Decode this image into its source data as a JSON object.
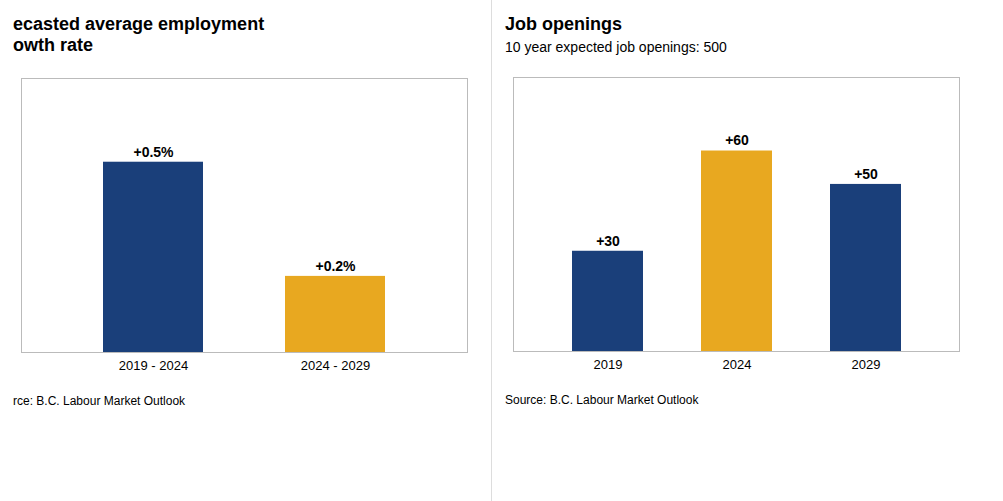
{
  "chart_data": [
    {
      "type": "bar",
      "title": "ecasted average employment\nowth rate",
      "categories": [
        "2019 - 2024",
        "2024 - 2029"
      ],
      "values": [
        0.5,
        0.2
      ],
      "value_labels": [
        "+0.5%",
        "+0.2%"
      ],
      "colors": [
        "#1a3f7a",
        "#e8a820"
      ],
      "ylim": [
        0,
        0.72
      ],
      "data_labels": true,
      "tick_labels": "x",
      "grid": false,
      "caption": "rce: B.C. Labour Market Outlook"
    },
    {
      "type": "bar",
      "title": "Job openings",
      "subtitle": "10 year expected job openings: 500",
      "categories": [
        "2019",
        "2024",
        "2029"
      ],
      "values": [
        30,
        60,
        50
      ],
      "value_labels": [
        "+30",
        "+60",
        "+50"
      ],
      "colors": [
        "#1a3f7a",
        "#e8a820",
        "#1a3f7a"
      ],
      "ylim": [
        0,
        82
      ],
      "data_labels": true,
      "tick_labels": "x",
      "grid": false,
      "caption": "Source: B.C. Labour Market Outlook"
    }
  ]
}
